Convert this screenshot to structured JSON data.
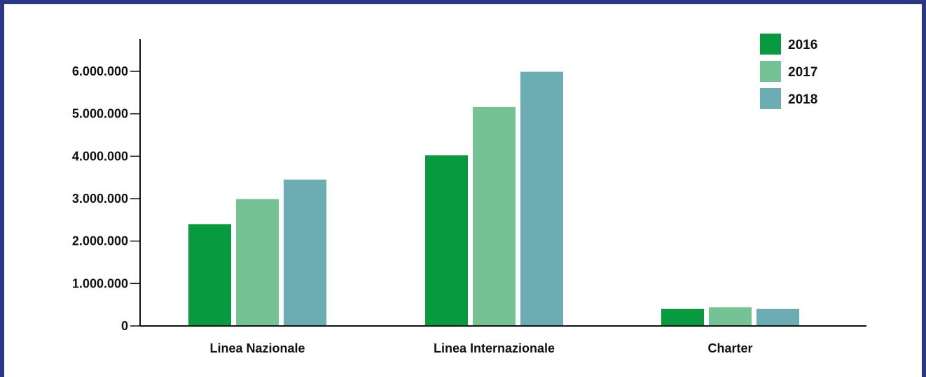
{
  "chart_data": {
    "type": "bar",
    "title": "",
    "xlabel": "",
    "ylabel": "",
    "categories": [
      "Linea Nazionale",
      "Linea Internazionale",
      "Charter"
    ],
    "series": [
      {
        "name": "2016",
        "color": "#089a3f",
        "values": [
          2400000,
          4020000,
          400000
        ]
      },
      {
        "name": "2017",
        "color": "#75c295",
        "values": [
          2990000,
          5160000,
          440000
        ]
      },
      {
        "name": "2018",
        "color": "#6badb3",
        "values": [
          3450000,
          5990000,
          400000
        ]
      }
    ],
    "ylim": [
      0,
      6000000
    ],
    "yticks": [
      {
        "value": 0,
        "label": "0"
      },
      {
        "value": 1000000,
        "label": "1.000.000"
      },
      {
        "value": 2000000,
        "label": "2.000.000"
      },
      {
        "value": 3000000,
        "label": "3.000.000"
      },
      {
        "value": 4000000,
        "label": "4.000.000"
      },
      {
        "value": 5000000,
        "label": "5.000.000"
      },
      {
        "value": 6000000,
        "label": "6.000.000"
      }
    ],
    "grid": false,
    "legend_position": "top-right"
  },
  "colors": {
    "frame": "#2a3782",
    "axis": "#111111"
  }
}
